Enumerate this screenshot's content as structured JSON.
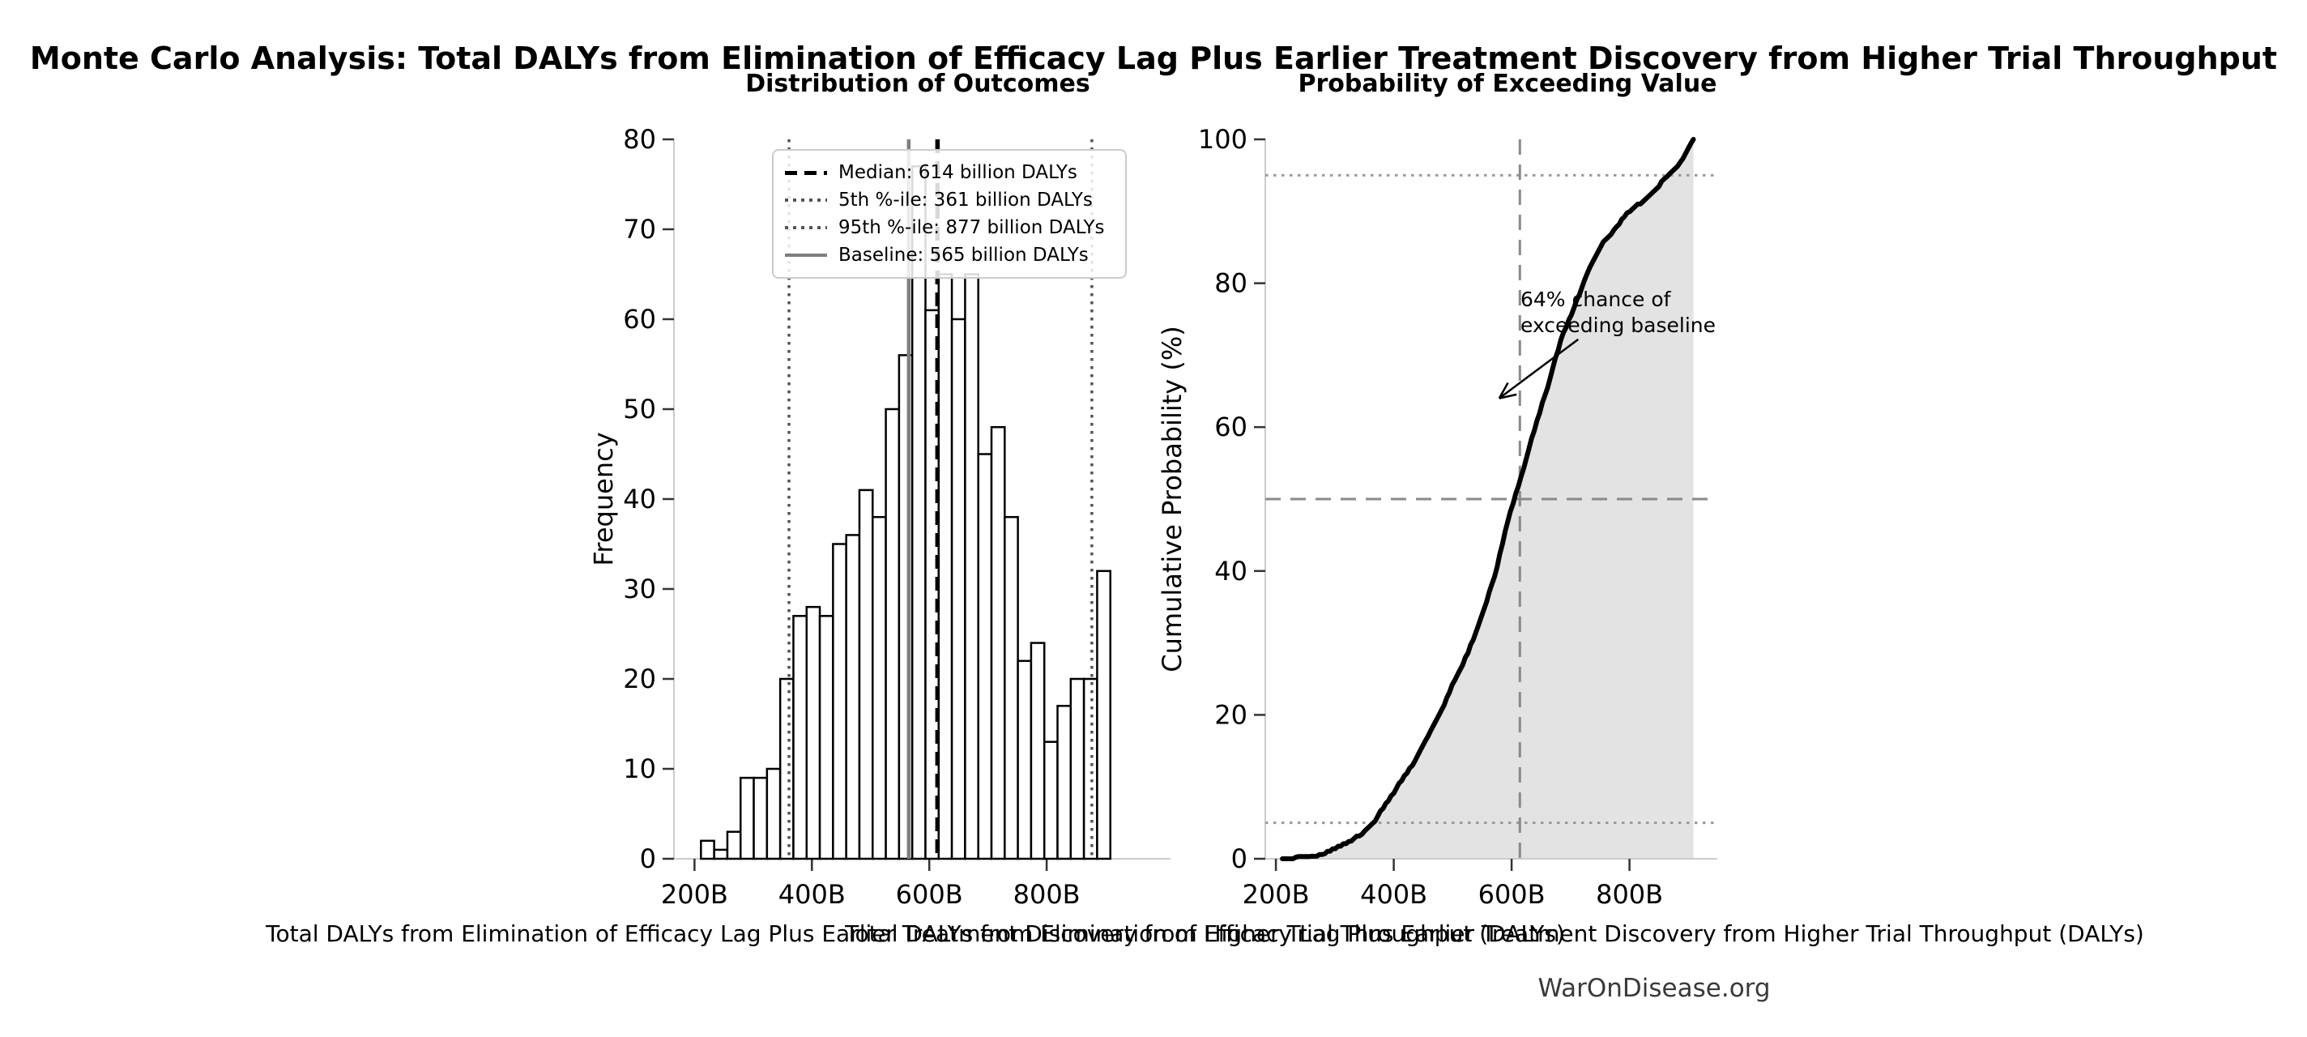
{
  "title": "Monte Carlo Analysis: Total DALYs from Elimination of Efficacy Lag Plus Earlier Treatment Discovery from Higher Trial Throughput",
  "watermark": "WarOnDisease.org",
  "chart_data": [
    {
      "type": "bar",
      "subtype": "histogram",
      "title": "Distribution of Outcomes",
      "xlabel": "Total DALYs from Elimination of Efficacy Lag Plus Earlier Treatment Discovery from Higher Trial Throughput (DALYs)",
      "ylabel": "Frequency",
      "ylim": [
        0,
        80
      ],
      "xlim_billion": [
        165,
        1011
      ],
      "y_ticks": [
        0,
        10,
        20,
        30,
        40,
        50,
        60,
        70,
        80
      ],
      "x_tick_values_billion": [
        200,
        400,
        600,
        800
      ],
      "x_tick_labels": [
        "200B",
        "400B",
        "600B",
        "800B"
      ],
      "bin_start_billion": 211,
      "bin_width_billion": 22.5,
      "frequencies": [
        2,
        1,
        3,
        9,
        9,
        10,
        20,
        27,
        28,
        27,
        35,
        36,
        41,
        38,
        50,
        56,
        77,
        61,
        65,
        60,
        65,
        45,
        48,
        38,
        22,
        24,
        13,
        17,
        20,
        20,
        32
      ],
      "bar_fill": "#ffffff",
      "bar_edge": "#000000",
      "vlines": [
        {
          "name": "median",
          "value_billion": 614,
          "style": "dashed",
          "color": "#000000",
          "label": "Median: 614 billion DALYs"
        },
        {
          "name": "percentile-5",
          "value_billion": 361,
          "style": "dotted",
          "color": "#555555",
          "label": "5th %-ile: 361 billion DALYs"
        },
        {
          "name": "percentile-95",
          "value_billion": 877,
          "style": "dotted",
          "color": "#555555",
          "label": "95th %-ile: 877 billion DALYs"
        },
        {
          "name": "baseline",
          "value_billion": 565,
          "style": "solid",
          "color": "#7f7f7f",
          "label": "Baseline: 565 billion DALYs"
        }
      ],
      "legend_position": "upper center"
    },
    {
      "type": "line",
      "subtype": "ecdf",
      "title": "Probability of Exceeding Value",
      "xlabel": "Total DALYs from Elimination of Efficacy Lag Plus Earlier Treatment Discovery from Higher Trial Throughput (DALYs)",
      "ylabel": "Cumulative Probability (%)",
      "ylim": [
        0,
        100
      ],
      "xlim_billion": [
        182,
        949
      ],
      "y_ticks": [
        0,
        20,
        40,
        60,
        80,
        100
      ],
      "x_tick_values_billion": [
        200,
        400,
        600,
        800
      ],
      "x_tick_labels": [
        "200B",
        "400B",
        "600B",
        "800B"
      ],
      "line_color": "#000000",
      "fill_under_curve": true,
      "fill_color": "#e3e3e3",
      "cdf_points_billion_pct": [
        [
          211,
          0.0
        ],
        [
          233.5,
          0.2
        ],
        [
          256,
          0.3
        ],
        [
          278.5,
          0.6
        ],
        [
          301,
          1.5
        ],
        [
          323.5,
          2.4
        ],
        [
          346,
          3.4
        ],
        [
          368.5,
          5.4
        ],
        [
          391,
          8.1
        ],
        [
          413.5,
          10.9
        ],
        [
          436,
          13.6
        ],
        [
          458.5,
          17.1
        ],
        [
          481,
          20.7
        ],
        [
          503.5,
          24.8
        ],
        [
          526,
          28.6
        ],
        [
          548.5,
          33.6
        ],
        [
          571,
          39.2
        ],
        [
          593.5,
          46.9
        ],
        [
          616,
          53.1
        ],
        [
          638.5,
          59.6
        ],
        [
          661,
          65.6
        ],
        [
          683.5,
          72.1
        ],
        [
          706,
          76.6
        ],
        [
          728.5,
          81.4
        ],
        [
          751,
          85.2
        ],
        [
          773.5,
          87.4
        ],
        [
          796,
          89.8
        ],
        [
          818.5,
          91.1
        ],
        [
          841,
          92.8
        ],
        [
          863.5,
          94.8
        ],
        [
          886,
          96.8
        ],
        [
          908.5,
          100.0
        ]
      ],
      "hlines": [
        {
          "name": "percentile-5-line",
          "y_pct": 5,
          "style": "dotted",
          "color": "#999999"
        },
        {
          "name": "median-crosshair-h",
          "y_pct": 50,
          "style": "dashed",
          "color": "#8a8a8a"
        },
        {
          "name": "percentile-95-line",
          "y_pct": 95,
          "style": "dotted",
          "color": "#999999"
        }
      ],
      "vlines": [
        {
          "name": "median-crosshair-v",
          "value_billion": 614,
          "style": "dashed",
          "color": "#8a8a8a"
        }
      ],
      "annotation": {
        "lines": [
          "64% chance of",
          "exceeding baseline"
        ],
        "text_x_billion": 615,
        "text_y_pct": 79.5,
        "arrow_from": {
          "x_billion": 713,
          "y_pct": 72.2
        },
        "arrow_to": {
          "x_billion": 579,
          "y_pct": 64
        }
      }
    }
  ]
}
